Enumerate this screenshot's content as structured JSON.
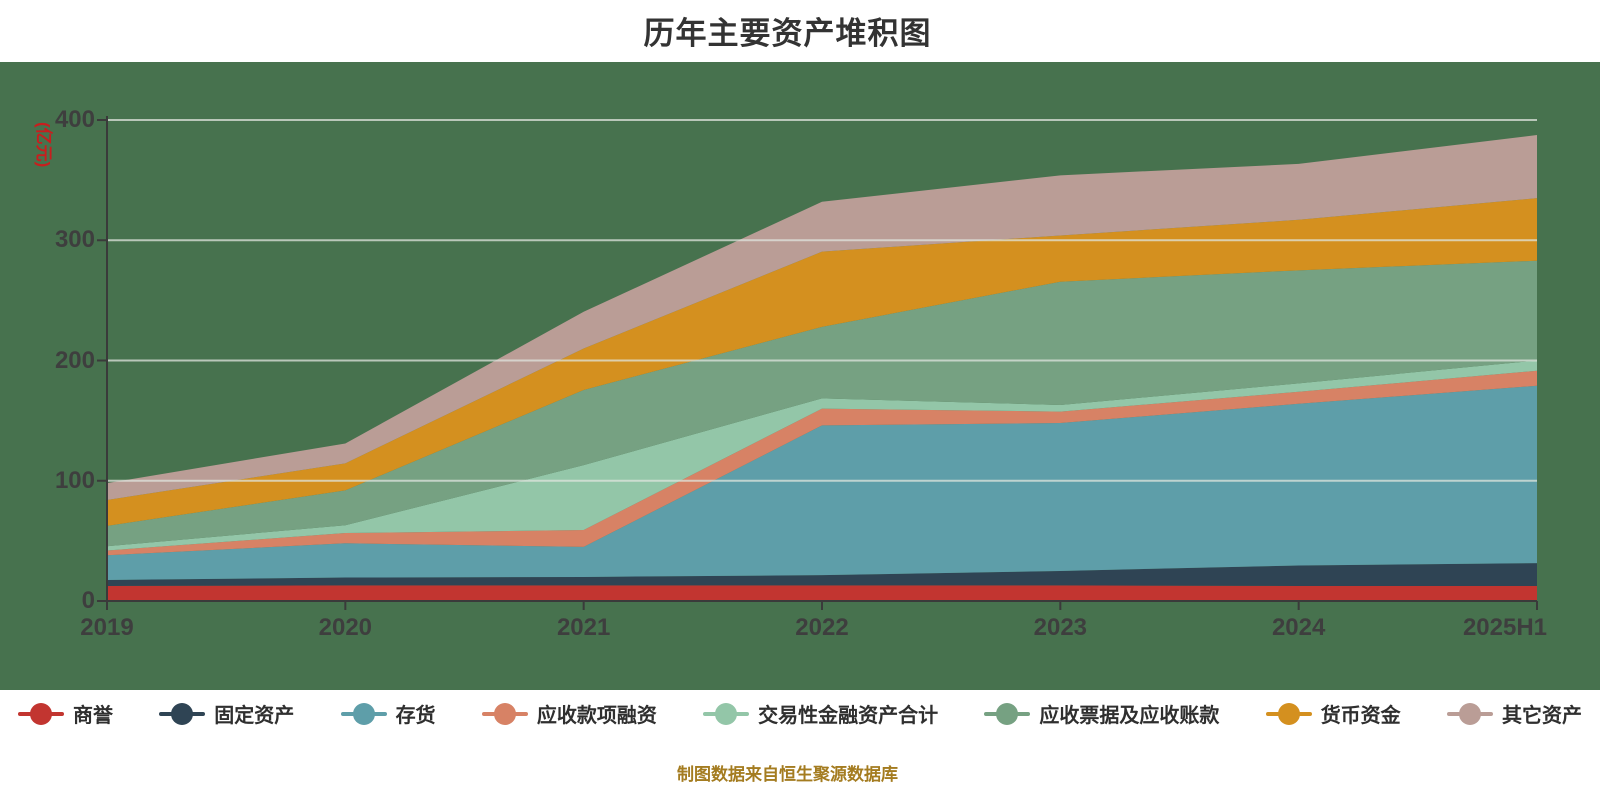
{
  "title": "历年主要资产堆积图",
  "footer": "制图数据来自恒生聚源数据库",
  "y_axis": {
    "unit": "(亿元)",
    "ticks": [
      0,
      100,
      200,
      300,
      400
    ]
  },
  "x_axis": {
    "categories": [
      "2019",
      "2020",
      "2021",
      "2022",
      "2023",
      "2024",
      "2025H1"
    ]
  },
  "chart_data": {
    "type": "area",
    "stacked": true,
    "title": "历年主要资产堆积图",
    "ylabel": "(亿元)",
    "ylim": [
      0,
      400
    ],
    "grid": true,
    "legend_position": "bottom",
    "categories": [
      "2019",
      "2020",
      "2021",
      "2022",
      "2023",
      "2024",
      "2025H1"
    ],
    "series": [
      {
        "name": "商誉",
        "color": "#C23530",
        "values": [
          12.5,
          13,
          13,
          13,
          13,
          12.5,
          12.5
        ]
      },
      {
        "name": "固定资产",
        "color": "#2F4454",
        "values": [
          5,
          6.5,
          7,
          8.5,
          12,
          17,
          19
        ]
      },
      {
        "name": "存货",
        "color": "#5E9EA9",
        "values": [
          20.5,
          28.5,
          25,
          124.5,
          123,
          134.5,
          147.5
        ]
      },
      {
        "name": "应收款项融资",
        "color": "#D78265",
        "values": [
          4,
          8.5,
          14,
          14,
          9.5,
          10,
          12.5
        ]
      },
      {
        "name": "交易性金融资产合计",
        "color": "#93C6A8",
        "values": [
          3.5,
          6.5,
          54,
          8.5,
          5.5,
          7,
          8.5
        ]
      },
      {
        "name": "应收票据及应收账款",
        "color": "#76A182",
        "values": [
          17,
          29,
          62.5,
          59.5,
          102.5,
          94,
          83
        ]
      },
      {
        "name": "货币资金",
        "color": "#D4901F",
        "values": [
          21.5,
          22.5,
          34.5,
          62.5,
          38.5,
          42,
          52
        ]
      },
      {
        "name": "其它资产",
        "color": "#BA9D96",
        "values": [
          14,
          16.5,
          30.5,
          41.5,
          50,
          46.5,
          52.5
        ]
      }
    ],
    "totals": [
      98,
      131,
      240.5,
      332,
      354,
      363.5,
      387.5
    ]
  },
  "colors": {
    "plot_bg": "#47724E",
    "gridline": "#DFE4DE",
    "axis": "#3A3A3A",
    "tick_label": "#3E3E3E",
    "title_text": "#333333",
    "unit_label": "#C81E1E",
    "legend_text": "#2F2F2F",
    "footer_text": "#A47C20"
  }
}
